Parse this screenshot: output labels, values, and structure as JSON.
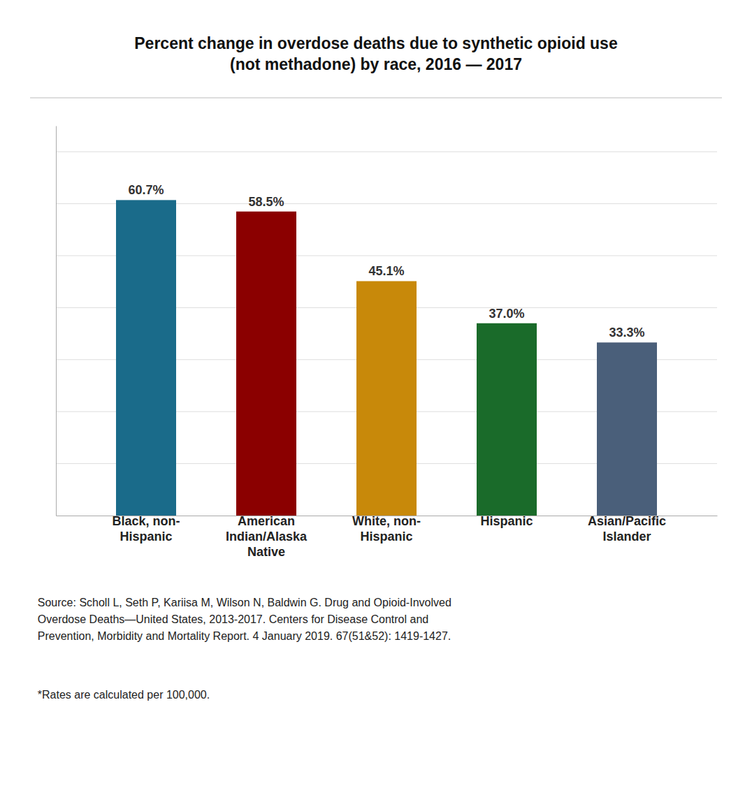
{
  "chart_data": {
    "type": "bar",
    "title": "Percent change in overdose deaths due to synthetic opioid use\n(not methadone) by race, 2016 — 2017",
    "categories": [
      "Black, non-\nHispanic",
      "American\nIndian/Alaska\nNative",
      "White, non-\nHispanic",
      "Hispanic",
      "Asian/Pacific\nIslander"
    ],
    "values": [
      60.7,
      58.5,
      45.1,
      37.0,
      33.3
    ],
    "value_labels": [
      "60.7%",
      "58.5%",
      "45.1%",
      "37.0%",
      "33.3%"
    ],
    "colors": [
      "#1a6b8a",
      "#8b0000",
      "#c8890a",
      "#1a6b2a",
      "#4a5f7a"
    ],
    "ylim": [
      0,
      75
    ],
    "yticks": [
      10,
      20,
      30,
      40,
      50,
      60,
      70
    ],
    "grid": true,
    "tick_labels": "x",
    "data_labels": true,
    "annotations": [
      "Source: Scholl L, Seth P, Kariisa M, Wilson N, Baldwin G. Drug and Opioid-Involved\nOverdose Deaths—United States, 2013-2017. Centers for Disease Control and\nPrevention, Morbidity and Mortality Report. 4 January 2019. 67(51&52): 1419-1427.",
      "*Rates are calculated per 100,000."
    ]
  }
}
